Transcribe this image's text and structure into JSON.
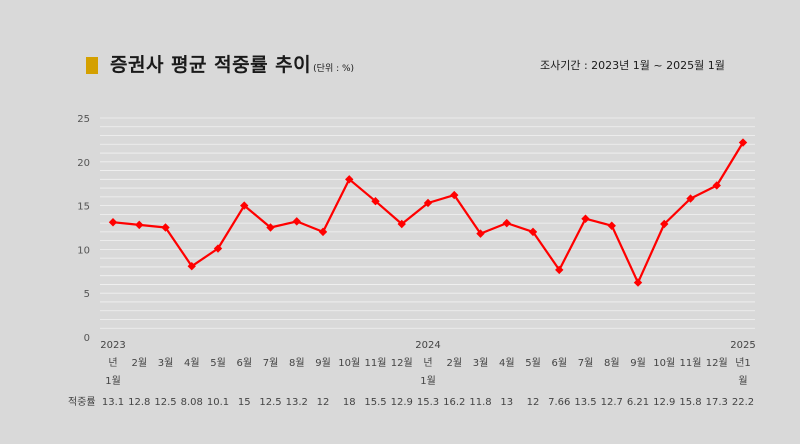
{
  "title": "증권사 평균 적중률 추이",
  "unit": "(단위 : %)",
  "period": "조사기간 : 2023년 1월 ~ 2025월 1월",
  "colors": {
    "line": "#ff0000",
    "marker": "#ff0000",
    "title_marker": "#d4a000",
    "grid": "#f2f2f2"
  },
  "chart_data": {
    "type": "line",
    "title": "증권사 평균 적중률 추이",
    "ylim": [
      0,
      25
    ],
    "yticks": [
      0,
      5,
      10,
      15,
      20,
      25
    ],
    "grid": true,
    "row_label": "적중률",
    "categories": [
      [
        "2023",
        "년",
        "1월"
      ],
      [
        "2월"
      ],
      [
        "3월"
      ],
      [
        "4월"
      ],
      [
        "5월"
      ],
      [
        "6월"
      ],
      [
        "7월"
      ],
      [
        "8월"
      ],
      [
        "9월"
      ],
      [
        "10월"
      ],
      [
        "11월"
      ],
      [
        "12월"
      ],
      [
        "2024",
        "년",
        "1월"
      ],
      [
        "2월"
      ],
      [
        "3월"
      ],
      [
        "4월"
      ],
      [
        "5월"
      ],
      [
        "6월"
      ],
      [
        "7월"
      ],
      [
        "8월"
      ],
      [
        "9월"
      ],
      [
        "10월"
      ],
      [
        "11월"
      ],
      [
        "12월"
      ],
      [
        "2025",
        "년1",
        "월"
      ]
    ],
    "value_labels": [
      "13.1",
      "12.8",
      "12.5",
      "8.08",
      "10.1",
      "15",
      "12.5",
      "13.2",
      "12",
      "18",
      "15.5",
      "12.9",
      "15.3",
      "16.2",
      "11.8",
      "13",
      "12",
      "7.66",
      "13.5",
      "12.7",
      "6.21",
      "12.9",
      "15.8",
      "17.3",
      "22.2"
    ],
    "series": [
      {
        "values": [
          13.1,
          12.8,
          12.5,
          8.08,
          10.1,
          15,
          12.5,
          13.2,
          12,
          18,
          15.5,
          12.9,
          15.3,
          16.2,
          11.8,
          13,
          12,
          7.66,
          13.5,
          12.7,
          6.21,
          12.9,
          15.8,
          17.3,
          22.2
        ]
      }
    ]
  }
}
